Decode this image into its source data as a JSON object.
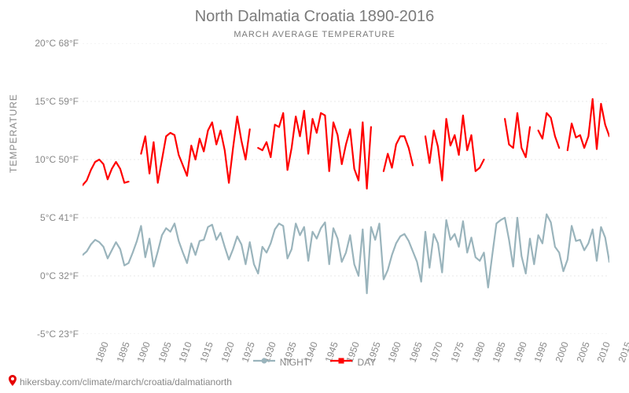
{
  "chart": {
    "type": "line",
    "title": "North Dalmatia Croatia 1890-2016",
    "subtitle": "MARCH AVERAGE TEMPERATURE",
    "ylabel": "TEMPERATURE",
    "title_color": "#7a7a7a",
    "title_fontsize": 20,
    "subtitle_fontsize": 11,
    "background_color": "#ffffff",
    "grid_color": "#e8e8e8",
    "axis_label_color": "#888888",
    "x_domain": [
      1890,
      2016
    ],
    "y_domain_c": [
      -5,
      20
    ],
    "y_ticks": [
      {
        "c": -5,
        "label": "-5°C 23°F"
      },
      {
        "c": 0,
        "label": "0°C 32°F"
      },
      {
        "c": 5,
        "label": "5°C 41°F"
      },
      {
        "c": 10,
        "label": "10°C 50°F"
      },
      {
        "c": 15,
        "label": "15°C 59°F"
      },
      {
        "c": 20,
        "label": "20°C 68°F"
      }
    ],
    "x_ticks": [
      1890,
      1895,
      1900,
      1905,
      1910,
      1915,
      1920,
      1925,
      1930,
      1935,
      1940,
      1945,
      1950,
      1955,
      1960,
      1965,
      1970,
      1975,
      1980,
      1985,
      1990,
      1995,
      2000,
      2005,
      2010,
      2015
    ],
    "x_tick_rotation": -70,
    "series": [
      {
        "name": "NIGHT",
        "color": "#9ab4bc",
        "line_width": 2.2,
        "marker": "circle",
        "segments": [
          [
            [
              1890,
              1.8
            ],
            [
              1891,
              2.1
            ],
            [
              1892,
              2.7
            ],
            [
              1893,
              3.1
            ],
            [
              1894,
              2.9
            ],
            [
              1895,
              2.5
            ],
            [
              1896,
              1.5
            ],
            [
              1897,
              2.2
            ],
            [
              1898,
              2.9
            ],
            [
              1899,
              2.3
            ],
            [
              1900,
              0.9
            ],
            [
              1901,
              1.1
            ],
            [
              1902,
              2.0
            ],
            [
              1903,
              3.0
            ],
            [
              1904,
              4.3
            ],
            [
              1905,
              1.6
            ],
            [
              1906,
              3.2
            ],
            [
              1907,
              0.8
            ],
            [
              1908,
              2.1
            ],
            [
              1909,
              3.5
            ],
            [
              1910,
              4.1
            ],
            [
              1911,
              3.8
            ],
            [
              1912,
              4.5
            ],
            [
              1913,
              3.0
            ],
            [
              1914,
              2.0
            ],
            [
              1915,
              1.1
            ],
            [
              1916,
              2.8
            ],
            [
              1917,
              1.8
            ],
            [
              1918,
              3.0
            ],
            [
              1919,
              3.1
            ],
            [
              1920,
              4.2
            ],
            [
              1921,
              4.4
            ],
            [
              1922,
              3.1
            ],
            [
              1923,
              3.7
            ],
            [
              1924,
              2.5
            ],
            [
              1925,
              1.4
            ],
            [
              1926,
              2.3
            ],
            [
              1927,
              3.4
            ],
            [
              1928,
              2.7
            ],
            [
              1929,
              1.0
            ],
            [
              1930,
              2.9
            ],
            [
              1931,
              1.0
            ],
            [
              1932,
              0.2
            ],
            [
              1933,
              2.5
            ],
            [
              1934,
              2.0
            ],
            [
              1935,
              2.8
            ],
            [
              1936,
              4.0
            ],
            [
              1937,
              4.5
            ],
            [
              1938,
              4.3
            ],
            [
              1939,
              1.5
            ],
            [
              1940,
              2.3
            ],
            [
              1941,
              4.5
            ],
            [
              1942,
              3.5
            ],
            [
              1943,
              4.2
            ],
            [
              1944,
              1.3
            ],
            [
              1945,
              3.8
            ],
            [
              1946,
              3.2
            ],
            [
              1947,
              4.1
            ],
            [
              1948,
              4.6
            ],
            [
              1949,
              1.0
            ],
            [
              1950,
              4.1
            ],
            [
              1951,
              3.2
            ],
            [
              1952,
              1.2
            ],
            [
              1953,
              2.0
            ],
            [
              1954,
              3.5
            ],
            [
              1955,
              1.0
            ],
            [
              1956,
              0.0
            ],
            [
              1957,
              4.0
            ],
            [
              1958,
              -1.5
            ],
            [
              1959,
              4.2
            ],
            [
              1960,
              3.1
            ],
            [
              1961,
              4.5
            ],
            [
              1962,
              -0.3
            ],
            [
              1963,
              0.5
            ],
            [
              1964,
              1.8
            ],
            [
              1965,
              2.8
            ],
            [
              1966,
              3.4
            ],
            [
              1967,
              3.6
            ],
            [
              1968,
              3.0
            ],
            [
              1969,
              2.1
            ],
            [
              1970,
              1.2
            ],
            [
              1971,
              -0.5
            ],
            [
              1972,
              3.8
            ],
            [
              1973,
              0.7
            ],
            [
              1974,
              3.6
            ],
            [
              1975,
              2.8
            ],
            [
              1976,
              0.3
            ],
            [
              1977,
              4.8
            ],
            [
              1978,
              3.1
            ],
            [
              1979,
              3.6
            ],
            [
              1980,
              2.5
            ],
            [
              1981,
              4.7
            ],
            [
              1982,
              2.0
            ],
            [
              1983,
              3.3
            ],
            [
              1984,
              1.6
            ],
            [
              1985,
              1.3
            ],
            [
              1986,
              2.0
            ],
            [
              1987,
              -1.0
            ],
            [
              1988,
              1.8
            ],
            [
              1989,
              4.5
            ],
            [
              1990,
              4.8
            ],
            [
              1991,
              5.0
            ],
            [
              1992,
              3.1
            ],
            [
              1993,
              0.8
            ],
            [
              1994,
              5.0
            ],
            [
              1995,
              1.7
            ],
            [
              1996,
              0.2
            ],
            [
              1997,
              3.2
            ],
            [
              1998,
              1.0
            ],
            [
              1999,
              3.5
            ],
            [
              2000,
              2.8
            ],
            [
              2001,
              5.3
            ],
            [
              2002,
              4.6
            ],
            [
              2003,
              2.5
            ],
            [
              2004,
              2.0
            ],
            [
              2005,
              0.4
            ],
            [
              2006,
              1.4
            ],
            [
              2007,
              4.3
            ],
            [
              2008,
              3.0
            ],
            [
              2009,
              3.1
            ],
            [
              2010,
              2.2
            ],
            [
              2011,
              2.8
            ],
            [
              2012,
              4.0
            ],
            [
              2013,
              1.3
            ],
            [
              2014,
              4.2
            ],
            [
              2015,
              3.3
            ],
            [
              2016,
              1.2
            ]
          ]
        ]
      },
      {
        "name": "DAY",
        "color": "#ff0000",
        "line_width": 2.2,
        "marker": "square",
        "segments": [
          [
            [
              1890,
              7.8
            ],
            [
              1891,
              8.2
            ],
            [
              1892,
              9.1
            ],
            [
              1893,
              9.8
            ],
            [
              1894,
              10.0
            ],
            [
              1895,
              9.6
            ],
            [
              1896,
              8.3
            ],
            [
              1897,
              9.2
            ],
            [
              1898,
              9.8
            ],
            [
              1899,
              9.2
            ],
            [
              1900,
              8.0
            ],
            [
              1901,
              8.1
            ]
          ],
          [
            [
              1904,
              10.5
            ],
            [
              1905,
              12.0
            ],
            [
              1906,
              8.8
            ],
            [
              1907,
              11.5
            ],
            [
              1908,
              8.0
            ],
            [
              1909,
              10.0
            ],
            [
              1910,
              12.0
            ],
            [
              1911,
              12.3
            ],
            [
              1912,
              12.1
            ],
            [
              1913,
              10.4
            ],
            [
              1914,
              9.5
            ],
            [
              1915,
              8.6
            ],
            [
              1916,
              11.2
            ],
            [
              1917,
              10.0
            ],
            [
              1918,
              11.8
            ],
            [
              1919,
              10.7
            ],
            [
              1920,
              12.5
            ],
            [
              1921,
              13.2
            ],
            [
              1922,
              11.3
            ],
            [
              1923,
              12.5
            ],
            [
              1924,
              10.8
            ],
            [
              1925,
              8.0
            ],
            [
              1926,
              11.0
            ],
            [
              1927,
              13.7
            ],
            [
              1928,
              11.6
            ],
            [
              1929,
              10.0
            ],
            [
              1930,
              12.6
            ]
          ],
          [
            [
              1932,
              11.0
            ],
            [
              1933,
              10.8
            ],
            [
              1934,
              11.5
            ],
            [
              1935,
              10.2
            ],
            [
              1936,
              13.0
            ],
            [
              1937,
              12.8
            ],
            [
              1938,
              14.0
            ],
            [
              1939,
              9.1
            ],
            [
              1940,
              11.0
            ],
            [
              1941,
              13.7
            ],
            [
              1942,
              12.0
            ],
            [
              1943,
              14.2
            ],
            [
              1944,
              10.5
            ],
            [
              1945,
              13.5
            ],
            [
              1946,
              12.3
            ],
            [
              1947,
              14.0
            ],
            [
              1948,
              13.8
            ],
            [
              1949,
              9.0
            ],
            [
              1950,
              13.2
            ],
            [
              1951,
              12.1
            ],
            [
              1952,
              9.6
            ],
            [
              1953,
              11.3
            ],
            [
              1954,
              12.6
            ],
            [
              1955,
              9.2
            ],
            [
              1956,
              8.2
            ],
            [
              1957,
              13.2
            ],
            [
              1958,
              7.5
            ],
            [
              1959,
              12.8
            ]
          ],
          [
            [
              1962,
              9.0
            ],
            [
              1963,
              10.5
            ],
            [
              1964,
              9.3
            ],
            [
              1965,
              11.3
            ],
            [
              1966,
              12.0
            ],
            [
              1967,
              12.0
            ],
            [
              1968,
              11.0
            ],
            [
              1969,
              9.5
            ]
          ],
          [
            [
              1972,
              12.0
            ],
            [
              1973,
              9.7
            ],
            [
              1974,
              12.5
            ],
            [
              1975,
              11.1
            ],
            [
              1976,
              8.2
            ],
            [
              1977,
              13.5
            ],
            [
              1978,
              11.2
            ],
            [
              1979,
              12.1
            ],
            [
              1980,
              10.4
            ],
            [
              1981,
              13.8
            ],
            [
              1982,
              10.8
            ],
            [
              1983,
              12.1
            ],
            [
              1984,
              9.0
            ],
            [
              1985,
              9.3
            ],
            [
              1986,
              10.0
            ]
          ],
          [
            [
              1991,
              13.5
            ],
            [
              1992,
              11.3
            ],
            [
              1993,
              11.0
            ],
            [
              1994,
              14.0
            ],
            [
              1995,
              11.0
            ],
            [
              1996,
              10.2
            ],
            [
              1997,
              12.8
            ]
          ],
          [
            [
              1999,
              12.5
            ],
            [
              2000,
              11.8
            ],
            [
              2001,
              14.0
            ],
            [
              2002,
              13.6
            ],
            [
              2003,
              12.0
            ],
            [
              2004,
              11.0
            ]
          ],
          [
            [
              2006,
              10.8
            ],
            [
              2007,
              13.1
            ],
            [
              2008,
              11.9
            ],
            [
              2009,
              12.1
            ],
            [
              2010,
              11.0
            ],
            [
              2011,
              12.0
            ],
            [
              2012,
              15.2
            ],
            [
              2013,
              10.9
            ],
            [
              2014,
              14.8
            ],
            [
              2015,
              13.0
            ],
            [
              2016,
              12.0
            ]
          ]
        ]
      }
    ],
    "legend_position": "bottom-center",
    "source_url": "hikersbay.com/climate/march/croatia/dalmatianorth",
    "source_icon": "map-pin-icon",
    "source_icon_color": "#e60000"
  }
}
